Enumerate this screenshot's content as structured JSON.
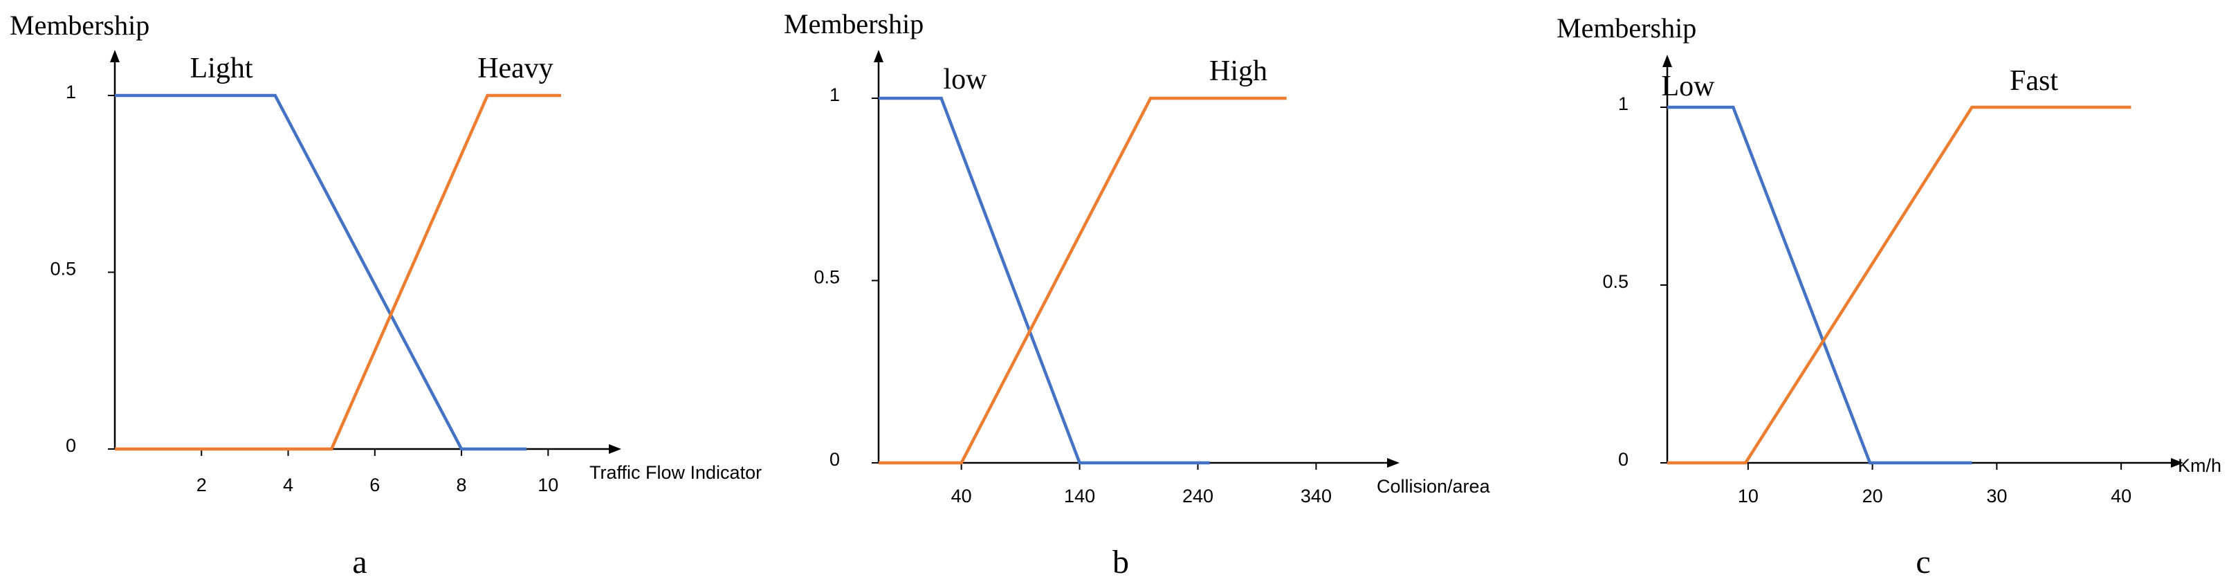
{
  "chart_data": [
    {
      "type": "line",
      "panel": "a",
      "ylabel": "Membership",
      "xlabel": "Traffic Flow Indicator",
      "x_ticks": [
        2,
        4,
        6,
        8,
        10
      ],
      "y_ticks": [
        0,
        0.5,
        1
      ],
      "xlim": [
        0,
        11.4
      ],
      "ylim": [
        0,
        1
      ],
      "series": [
        {
          "name": "Light",
          "color": "#4472C4",
          "x": [
            0,
            3.7,
            8,
            9.5
          ],
          "y": [
            1,
            1,
            0,
            0
          ]
        },
        {
          "name": "Heavy",
          "color": "#ED7D31",
          "x": [
            0,
            5,
            8.6,
            10.3
          ],
          "y": [
            0,
            0,
            1,
            1
          ]
        }
      ]
    },
    {
      "type": "line",
      "panel": "b",
      "ylabel": "Membership",
      "xlabel": "Collision/area",
      "x_ticks": [
        40,
        140,
        240,
        340
      ],
      "y_ticks": [
        0,
        0.5,
        1
      ],
      "xlim": [
        -30,
        400
      ],
      "ylim": [
        0,
        1
      ],
      "series": [
        {
          "name": "low",
          "color": "#4472C4",
          "x": [
            -30,
            23,
            140,
            250
          ],
          "y": [
            1,
            1,
            0,
            0
          ]
        },
        {
          "name": "High",
          "color": "#ED7D31",
          "x": [
            -30,
            40,
            200,
            315
          ],
          "y": [
            0,
            0,
            1,
            1
          ]
        }
      ]
    },
    {
      "type": "line",
      "panel": "c",
      "ylabel": "Membership",
      "xlabel": "Km/h",
      "x_ticks": [
        10,
        20,
        30,
        40
      ],
      "y_ticks": [
        0,
        0.5,
        1
      ],
      "xlim": [
        3.5,
        44
      ],
      "ylim": [
        0,
        1
      ],
      "series": [
        {
          "name": "Low",
          "color": "#4472C4",
          "x": [
            3.5,
            8.8,
            19.8,
            28
          ],
          "y": [
            1,
            1,
            0,
            0
          ]
        },
        {
          "name": "Fast",
          "color": "#ED7D31",
          "x": [
            3.5,
            9.8,
            28,
            40.8
          ],
          "y": [
            0,
            0,
            1,
            1
          ]
        }
      ]
    }
  ]
}
